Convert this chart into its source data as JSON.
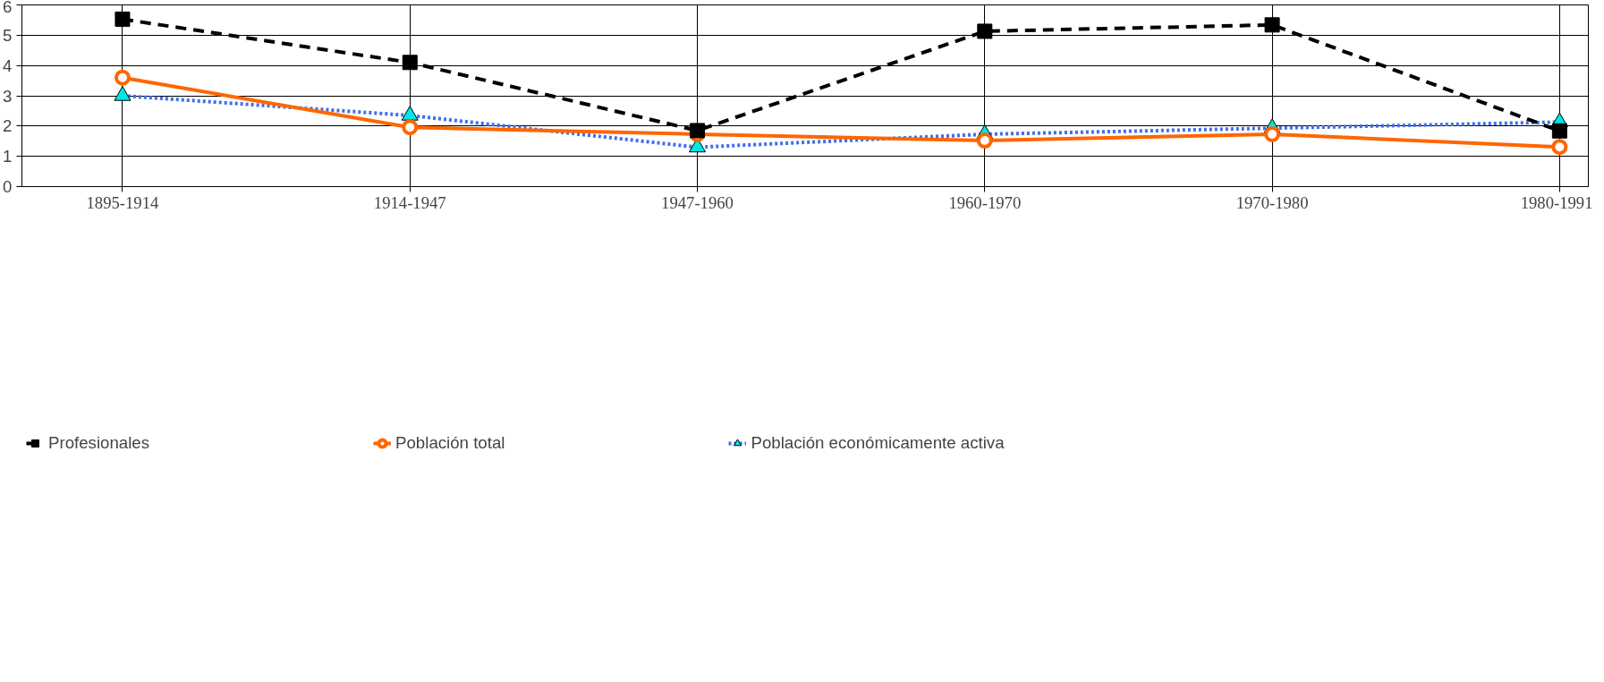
{
  "chart_data": {
    "type": "line",
    "categories": [
      "1895-1914",
      "1914-1947",
      "1947-1960",
      "1960-1970",
      "1970-1980",
      "1980-1991"
    ],
    "series": [
      {
        "name": "Profesionales",
        "color": "#000000",
        "marker": "square",
        "line_style": "dashed",
        "values": [
          5.53,
          4.1,
          1.85,
          5.13,
          5.34,
          1.84
        ]
      },
      {
        "name": "Población total",
        "color": "#ff6600",
        "marker": "circle",
        "line_style": "solid",
        "values": [
          3.6,
          1.96,
          1.73,
          1.52,
          1.73,
          1.31
        ]
      },
      {
        "name": "Población económicamente activa",
        "color": "#3f6fe8",
        "marker": "triangle",
        "line_style": "dotted",
        "values": [
          3.0,
          2.35,
          1.3,
          1.73,
          1.93,
          2.13
        ]
      }
    ],
    "ylim": [
      0,
      6
    ],
    "yticks": [
      0,
      1,
      2,
      3,
      4,
      5,
      6
    ],
    "grid": true,
    "legend": "bottom"
  }
}
